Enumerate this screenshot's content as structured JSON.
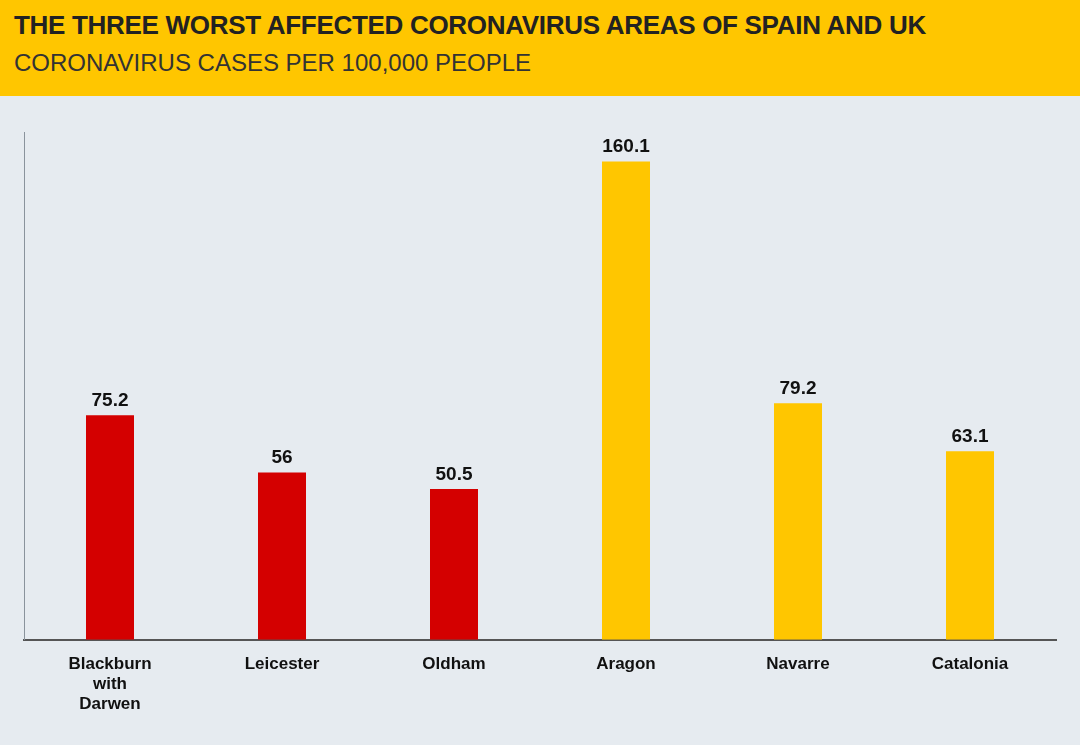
{
  "chart_data": {
    "type": "bar",
    "title": "THE THREE WORST AFFECTED CORONAVIRUS AREAS OF SPAIN AND UK",
    "subtitle": "CORONAVIRUS CASES PER 100,000 PEOPLE",
    "categories": [
      "Blackburn with Darwen",
      "Leicester",
      "Oldham",
      "Aragon",
      "Navarre",
      "Catalonia"
    ],
    "values": [
      75.2,
      56,
      50.5,
      160.1,
      79.2,
      63.1
    ],
    "colors": [
      "#d40000",
      "#d40000",
      "#d40000",
      "#ffc600",
      "#ffc600",
      "#ffc600"
    ],
    "ylim": [
      0,
      170
    ],
    "grid": false,
    "data_labels": true,
    "tick_labels": "x"
  }
}
